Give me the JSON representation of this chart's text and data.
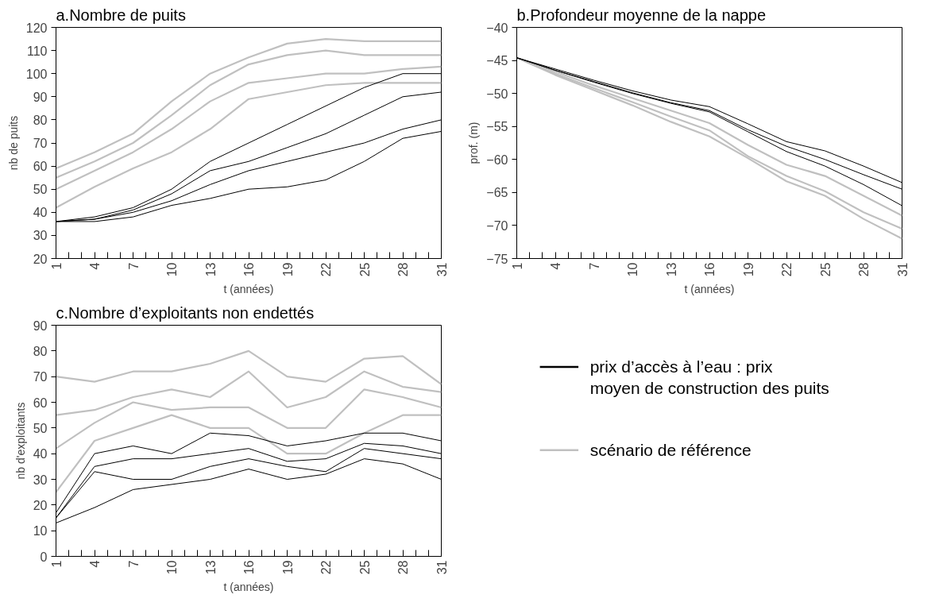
{
  "chart_data": [
    {
      "type": "line",
      "title": "a.Nombre de puits",
      "xlabel": "t (années)",
      "ylabel": "nb de puits",
      "x": [
        1,
        4,
        7,
        10,
        13,
        16,
        19,
        22,
        25,
        28,
        31
      ],
      "xlim": [
        1,
        31
      ],
      "xticks": [
        1,
        {
          "value": 2,
          "label": null
        },
        {
          "value": 3,
          "label": null
        },
        4,
        {
          "value": 5,
          "label": null
        },
        {
          "value": 6,
          "label": null
        },
        7,
        {
          "value": 8,
          "label": null
        },
        {
          "value": 9,
          "label": null
        },
        10,
        {
          "value": 11,
          "label": null
        },
        {
          "value": 12,
          "label": null
        },
        13,
        {
          "value": 14,
          "label": null
        },
        {
          "value": 15,
          "label": null
        },
        16,
        {
          "value": 17,
          "label": null
        },
        {
          "value": 18,
          "label": null
        },
        19,
        {
          "value": 20,
          "label": null
        },
        {
          "value": 21,
          "label": null
        },
        22,
        {
          "value": 23,
          "label": null
        },
        {
          "value": 24,
          "label": null
        },
        25,
        {
          "value": 26,
          "label": null
        },
        {
          "value": 27,
          "label": null
        },
        28,
        {
          "value": 29,
          "label": null
        },
        {
          "value": 30,
          "label": null
        },
        31
      ],
      "ylim": [
        20,
        120
      ],
      "yticks": [
        20,
        30,
        40,
        50,
        60,
        70,
        80,
        90,
        100,
        110,
        120
      ],
      "grid": false,
      "marker": "none",
      "line_style": "solid",
      "series": [
        {
          "color": "#c0c0c0",
          "values": [
            59,
            66,
            74,
            88,
            100,
            107,
            113,
            115,
            114,
            114,
            114
          ]
        },
        {
          "color": "#c0c0c0",
          "values": [
            55,
            62,
            70,
            82,
            95,
            104,
            108,
            110,
            108,
            108,
            108
          ]
        },
        {
          "color": "#c0c0c0",
          "values": [
            50,
            58,
            66,
            76,
            88,
            96,
            98,
            100,
            100,
            102,
            103
          ]
        },
        {
          "color": "#c0c0c0",
          "values": [
            42,
            51,
            59,
            66,
            76,
            89,
            92,
            95,
            96,
            96,
            96
          ]
        },
        {
          "color": "#000000",
          "values": [
            36,
            38,
            42,
            50,
            62,
            70,
            78,
            86,
            94,
            100,
            100
          ]
        },
        {
          "color": "#000000",
          "values": [
            36,
            37,
            41,
            48,
            58,
            62,
            68,
            74,
            82,
            90,
            92
          ]
        },
        {
          "color": "#000000",
          "values": [
            36,
            37,
            40,
            45,
            52,
            58,
            62,
            66,
            70,
            76,
            80
          ]
        },
        {
          "color": "#000000",
          "values": [
            36,
            36,
            38,
            43,
            46,
            50,
            51,
            54,
            62,
            72,
            75
          ]
        }
      ]
    },
    {
      "type": "line",
      "title": "b.Profondeur moyenne de la nappe",
      "xlabel": "t (années)",
      "ylabel": "prof. (m)",
      "x": [
        1,
        4,
        7,
        10,
        13,
        16,
        19,
        22,
        25,
        28,
        31
      ],
      "xlim": [
        1,
        31
      ],
      "xticks": [
        1,
        {
          "value": 2,
          "label": null
        },
        {
          "value": 3,
          "label": null
        },
        4,
        {
          "value": 5,
          "label": null
        },
        {
          "value": 6,
          "label": null
        },
        7,
        {
          "value": 8,
          "label": null
        },
        {
          "value": 9,
          "label": null
        },
        10,
        {
          "value": 11,
          "label": null
        },
        {
          "value": 12,
          "label": null
        },
        13,
        {
          "value": 14,
          "label": null
        },
        {
          "value": 15,
          "label": null
        },
        16,
        {
          "value": 17,
          "label": null
        },
        {
          "value": 18,
          "label": null
        },
        19,
        {
          "value": 20,
          "label": null
        },
        {
          "value": 21,
          "label": null
        },
        22,
        {
          "value": 23,
          "label": null
        },
        {
          "value": 24,
          "label": null
        },
        25,
        {
          "value": 26,
          "label": null
        },
        {
          "value": 27,
          "label": null
        },
        28,
        {
          "value": 29,
          "label": null
        },
        {
          "value": 30,
          "label": null
        },
        31
      ],
      "ylim": [
        -75,
        -40
      ],
      "yticks": [
        -75,
        -70,
        -65,
        -60,
        -55,
        -50,
        -45,
        -40
      ],
      "grid": false,
      "marker": "none",
      "line_style": "solid",
      "series": [
        {
          "color": "#c0c0c0",
          "values": [
            -44.6,
            -46.7,
            -48.8,
            -50.7,
            -52.6,
            -54.5,
            -57.8,
            -60.8,
            -62.5,
            -65.5,
            -68.5
          ]
        },
        {
          "color": "#c0c0c0",
          "values": [
            -44.6,
            -47,
            -49.2,
            -51.3,
            -53.5,
            -55.6,
            -59.5,
            -62.5,
            -64.8,
            -68,
            -70.5
          ]
        },
        {
          "color": "#c0c0c0",
          "values": [
            -44.6,
            -47.2,
            -49.5,
            -51.8,
            -54.3,
            -56.5,
            -59.8,
            -63.3,
            -65.5,
            -69,
            -72
          ]
        },
        {
          "color": "#000000",
          "values": [
            -44.6,
            -46.3,
            -48,
            -49.6,
            -51,
            -52,
            -54.6,
            -57.3,
            -58.7,
            -61,
            -63.5
          ]
        },
        {
          "color": "#000000",
          "values": [
            -44.6,
            -46.5,
            -48.2,
            -49.9,
            -51.4,
            -52.6,
            -55.5,
            -58,
            -60,
            -62.3,
            -64.5
          ]
        },
        {
          "color": "#000000",
          "values": [
            -44.6,
            -46.5,
            -48.3,
            -50,
            -51.5,
            -52.8,
            -55.8,
            -58.8,
            -61,
            -63.8,
            -67
          ]
        }
      ]
    },
    {
      "type": "line",
      "title": "c.Nombre d’exploitants non endettés",
      "xlabel": "t (années)",
      "ylabel": "nb d'exploitants",
      "x": [
        1,
        4,
        7,
        10,
        13,
        16,
        19,
        22,
        25,
        28,
        31
      ],
      "xlim": [
        1,
        31
      ],
      "xticks": [
        1,
        {
          "value": 2,
          "label": null
        },
        {
          "value": 3,
          "label": null
        },
        4,
        {
          "value": 5,
          "label": null
        },
        {
          "value": 6,
          "label": null
        },
        7,
        {
          "value": 8,
          "label": null
        },
        {
          "value": 9,
          "label": null
        },
        10,
        {
          "value": 11,
          "label": null
        },
        {
          "value": 12,
          "label": null
        },
        13,
        {
          "value": 14,
          "label": null
        },
        {
          "value": 15,
          "label": null
        },
        16,
        {
          "value": 17,
          "label": null
        },
        {
          "value": 18,
          "label": null
        },
        19,
        {
          "value": 20,
          "label": null
        },
        {
          "value": 21,
          "label": null
        },
        22,
        {
          "value": 23,
          "label": null
        },
        {
          "value": 24,
          "label": null
        },
        25,
        {
          "value": 26,
          "label": null
        },
        {
          "value": 27,
          "label": null
        },
        28,
        {
          "value": 29,
          "label": null
        },
        {
          "value": 30,
          "label": null
        },
        31
      ],
      "ylim": [
        0,
        90
      ],
      "yticks": [
        0,
        10,
        20,
        30,
        40,
        50,
        60,
        70,
        80,
        90
      ],
      "grid": false,
      "marker": "none",
      "line_style": "solid",
      "series": [
        {
          "color": "#c0c0c0",
          "values": [
            70,
            68,
            72,
            72,
            75,
            80,
            70,
            68,
            77,
            78,
            67
          ]
        },
        {
          "color": "#c0c0c0",
          "values": [
            55,
            57,
            62,
            65,
            62,
            72,
            58,
            62,
            72,
            66,
            64
          ]
        },
        {
          "color": "#c0c0c0",
          "values": [
            42,
            52,
            60,
            57,
            58,
            58,
            50,
            50,
            65,
            62,
            58
          ]
        },
        {
          "color": "#c0c0c0",
          "values": [
            25,
            45,
            50,
            55,
            50,
            50,
            40,
            40,
            48,
            55,
            55
          ]
        },
        {
          "color": "#000000",
          "values": [
            17,
            40,
            43,
            40,
            48,
            47,
            43,
            45,
            48,
            48,
            45
          ]
        },
        {
          "color": "#000000",
          "values": [
            15,
            35,
            38,
            38,
            40,
            42,
            37,
            38,
            44,
            43,
            40
          ]
        },
        {
          "color": "#000000",
          "values": [
            15,
            33,
            30,
            30,
            35,
            38,
            35,
            33,
            42,
            40,
            38
          ]
        },
        {
          "color": "#000000",
          "values": [
            13,
            19,
            26,
            28,
            30,
            34,
            30,
            32,
            38,
            36,
            30
          ]
        }
      ]
    },
    {
      "type": "other",
      "series": [
        {
          "name": "prix d’accès à l’eau : prix\nmoyen de construction des puits",
          "color": "#000000"
        },
        {
          "name": "scénario de référence",
          "color": "#c0c0c0"
        }
      ]
    }
  ]
}
